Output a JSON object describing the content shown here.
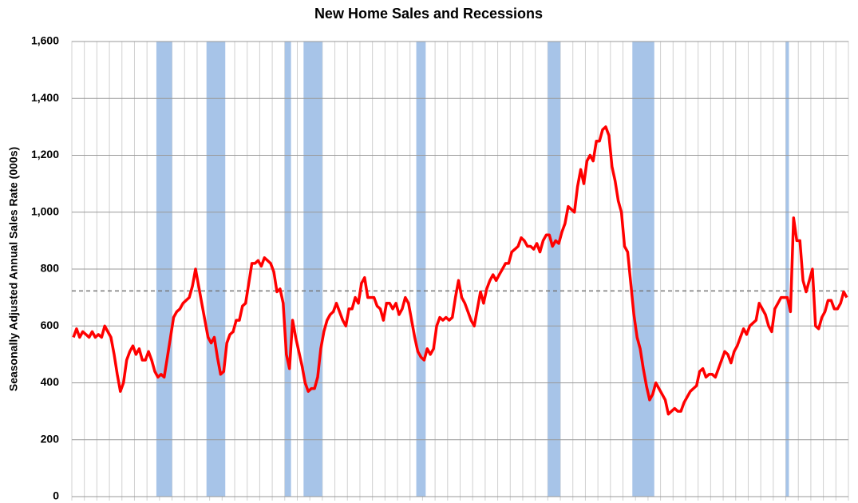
{
  "chart_data": {
    "type": "line",
    "title": "New Home Sales and Recessions",
    "ylabel": "Seasonally Adjusted Annual Sales Rate (000s)",
    "color": "#ff0000",
    "recession_color": "#a7c4e8",
    "reference_line": 723,
    "ylim": [
      0,
      1600
    ],
    "yticks": [
      0,
      200,
      400,
      600,
      800,
      {
        "value": 1000,
        "label": "1,000"
      },
      {
        "value": 1200,
        "label": "1,200"
      },
      {
        "value": 1400,
        "label": "1,400"
      },
      {
        "value": 1600,
        "label": "1,600"
      }
    ],
    "grid": true,
    "recessions": [
      [
        27,
        32
      ],
      [
        43,
        49
      ],
      [
        68,
        70
      ],
      [
        74,
        80
      ],
      [
        110,
        113
      ],
      [
        152,
        156
      ],
      [
        179,
        186
      ],
      [
        228,
        229
      ]
    ],
    "values": [
      560,
      590,
      560,
      580,
      570,
      560,
      580,
      560,
      570,
      560,
      600,
      580,
      560,
      500,
      430,
      370,
      400,
      480,
      510,
      530,
      500,
      520,
      480,
      480,
      510,
      480,
      440,
      420,
      430,
      420,
      490,
      560,
      630,
      650,
      660,
      680,
      690,
      700,
      740,
      800,
      740,
      680,
      620,
      560,
      540,
      560,
      490,
      430,
      440,
      540,
      570,
      580,
      620,
      620,
      670,
      680,
      750,
      820,
      820,
      830,
      810,
      840,
      830,
      820,
      790,
      720,
      730,
      680,
      500,
      450,
      620,
      560,
      510,
      460,
      400,
      370,
      380,
      380,
      420,
      520,
      580,
      620,
      640,
      650,
      680,
      650,
      620,
      600,
      660,
      660,
      700,
      680,
      750,
      770,
      700,
      700,
      700,
      670,
      660,
      620,
      680,
      680,
      660,
      680,
      640,
      660,
      700,
      680,
      620,
      560,
      510,
      490,
      480,
      520,
      500,
      520,
      600,
      630,
      620,
      630,
      620,
      630,
      700,
      760,
      700,
      680,
      650,
      620,
      600,
      660,
      720,
      680,
      730,
      760,
      780,
      760,
      780,
      800,
      820,
      820,
      860,
      870,
      880,
      910,
      900,
      880,
      880,
      870,
      890,
      860,
      900,
      920,
      920,
      880,
      900,
      890,
      930,
      960,
      1020,
      1010,
      1000,
      1090,
      1150,
      1100,
      1180,
      1200,
      1180,
      1250,
      1250,
      1290,
      1300,
      1270,
      1160,
      1110,
      1040,
      1000,
      880,
      860,
      750,
      640,
      560,
      520,
      450,
      390,
      340,
      360,
      400,
      380,
      360,
      340,
      290,
      300,
      310,
      300,
      300,
      330,
      350,
      370,
      380,
      390,
      440,
      450,
      420,
      430,
      430,
      420,
      450,
      480,
      510,
      500,
      470,
      510,
      530,
      560,
      590,
      570,
      600,
      610,
      620,
      680,
      660,
      640,
      600,
      580,
      660,
      680,
      700,
      700,
      700,
      650,
      980,
      900,
      900,
      760,
      720,
      760,
      800,
      600,
      590,
      630,
      650,
      690,
      690,
      660,
      660,
      680,
      720,
      700
    ]
  }
}
